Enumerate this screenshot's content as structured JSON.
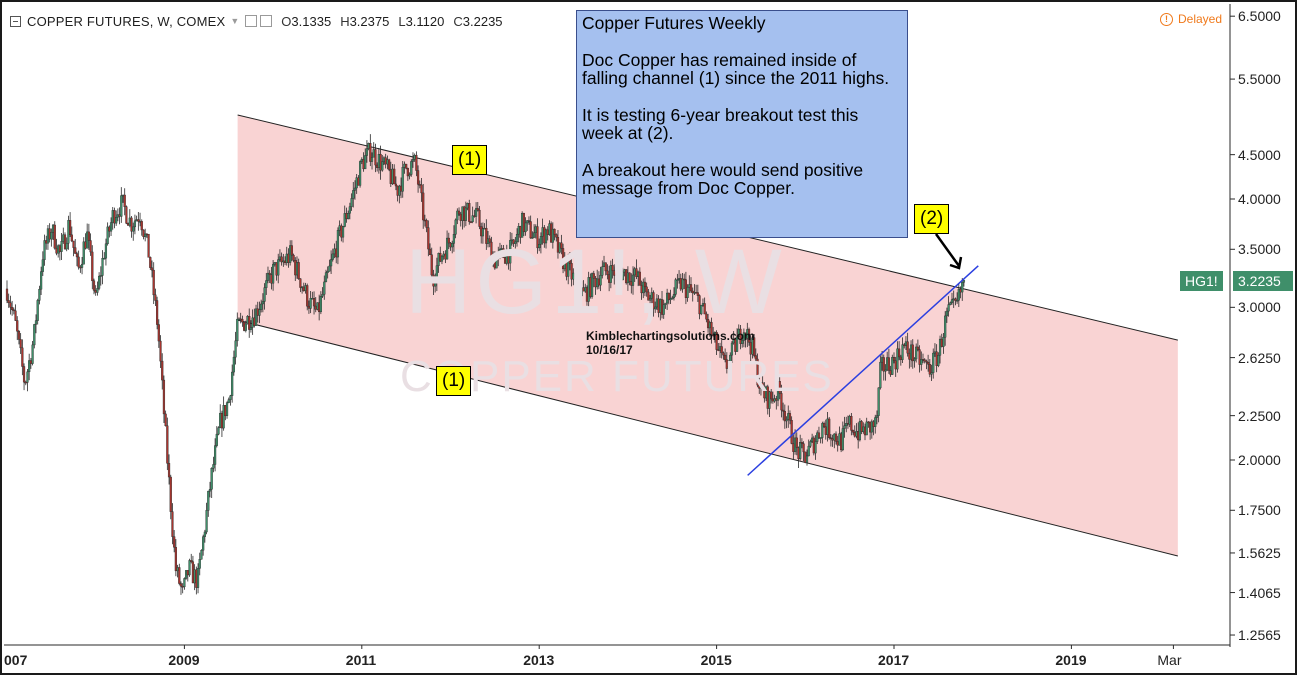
{
  "header": {
    "symbol": "COPPER FUTURES, W, COMEX",
    "open_label": "O",
    "open": "3.1335",
    "high_label": "H",
    "high": "3.2375",
    "low_label": "L",
    "low": "3.1120",
    "close_label": "C",
    "close": "3.2235"
  },
  "status": {
    "delayed": "Delayed"
  },
  "note": {
    "title": "Copper Futures Weekly",
    "para1": "Doc Copper has remained inside of falling channel (1) since the 2011 highs.",
    "para2": "It is testing 6-year breakout test this week at (2).",
    "para3": "A breakout here would send positive message from Doc Copper."
  },
  "labels": {
    "channel_top": "(1)",
    "channel_bottom": "(1)",
    "test_point": "(2)"
  },
  "watermark": {
    "symbol": "HG1!, W",
    "name": "COPPER FUTURES"
  },
  "credit": {
    "site": "Kimblechartingsolutions.com",
    "date": "10/16/17"
  },
  "price_scale": {
    "ticker_badge": "HG1!",
    "last_price": "3.2235"
  },
  "colors": {
    "up_candle": "#3f8f6a",
    "down_candle": "#a8352f",
    "channel_fill": "#f9d3d3",
    "trendline": "#2b3fe0",
    "note_bg": "#a5c0ef"
  },
  "chart_data": {
    "type": "candlestick",
    "title": "COPPER FUTURES, W, COMEX",
    "y_scale": "log",
    "ylim": [
      1.2565,
      6.5
    ],
    "y_ticks": [
      "6.5000",
      "5.5000",
      "4.5000",
      "4.0000",
      "3.5000",
      "3.0000",
      "2.6250",
      "2.2500",
      "2.0000",
      "1.7500",
      "1.5625",
      "1.4065",
      "1.2565"
    ],
    "x_ticks": [
      "007",
      "2009",
      "2011",
      "2013",
      "2015",
      "2017",
      "2019",
      "Mar"
    ],
    "anchors": [
      {
        "x": 2007.0,
        "y": 3.15
      },
      {
        "x": 2007.1,
        "y": 2.85
      },
      {
        "x": 2007.2,
        "y": 2.45
      },
      {
        "x": 2007.3,
        "y": 2.75
      },
      {
        "x": 2007.4,
        "y": 3.45
      },
      {
        "x": 2007.5,
        "y": 3.7
      },
      {
        "x": 2007.6,
        "y": 3.45
      },
      {
        "x": 2007.7,
        "y": 3.75
      },
      {
        "x": 2007.8,
        "y": 3.3
      },
      {
        "x": 2007.9,
        "y": 3.65
      },
      {
        "x": 2008.0,
        "y": 3.05
      },
      {
        "x": 2008.1,
        "y": 3.5
      },
      {
        "x": 2008.2,
        "y": 3.85
      },
      {
        "x": 2008.3,
        "y": 3.95
      },
      {
        "x": 2008.4,
        "y": 3.75
      },
      {
        "x": 2008.5,
        "y": 3.85
      },
      {
        "x": 2008.6,
        "y": 3.45
      },
      {
        "x": 2008.7,
        "y": 2.85
      },
      {
        "x": 2008.8,
        "y": 2.05
      },
      {
        "x": 2008.9,
        "y": 1.5
      },
      {
        "x": 2008.98,
        "y": 1.4
      },
      {
        "x": 2009.05,
        "y": 1.5
      },
      {
        "x": 2009.15,
        "y": 1.45
      },
      {
        "x": 2009.3,
        "y": 1.9
      },
      {
        "x": 2009.4,
        "y": 2.2
      },
      {
        "x": 2009.5,
        "y": 2.35
      },
      {
        "x": 2009.6,
        "y": 2.85
      },
      {
        "x": 2009.8,
        "y": 2.95
      },
      {
        "x": 2010.0,
        "y": 3.3
      },
      {
        "x": 2010.2,
        "y": 3.45
      },
      {
        "x": 2010.4,
        "y": 3.05
      },
      {
        "x": 2010.5,
        "y": 2.95
      },
      {
        "x": 2010.7,
        "y": 3.5
      },
      {
        "x": 2010.9,
        "y": 4.05
      },
      {
        "x": 2011.0,
        "y": 4.4
      },
      {
        "x": 2011.1,
        "y": 4.55
      },
      {
        "x": 2011.3,
        "y": 4.3
      },
      {
        "x": 2011.4,
        "y": 4.1
      },
      {
        "x": 2011.5,
        "y": 4.35
      },
      {
        "x": 2011.6,
        "y": 4.4
      },
      {
        "x": 2011.7,
        "y": 3.8
      },
      {
        "x": 2011.8,
        "y": 3.25
      },
      {
        "x": 2011.9,
        "y": 3.45
      },
      {
        "x": 2012.0,
        "y": 3.6
      },
      {
        "x": 2012.1,
        "y": 3.9
      },
      {
        "x": 2012.3,
        "y": 3.8
      },
      {
        "x": 2012.5,
        "y": 3.4
      },
      {
        "x": 2012.7,
        "y": 3.5
      },
      {
        "x": 2012.8,
        "y": 3.75
      },
      {
        "x": 2013.0,
        "y": 3.6
      },
      {
        "x": 2013.1,
        "y": 3.7
      },
      {
        "x": 2013.3,
        "y": 3.35
      },
      {
        "x": 2013.5,
        "y": 3.1
      },
      {
        "x": 2013.7,
        "y": 3.3
      },
      {
        "x": 2013.9,
        "y": 3.3
      },
      {
        "x": 2014.1,
        "y": 3.25
      },
      {
        "x": 2014.2,
        "y": 3.1
      },
      {
        "x": 2014.4,
        "y": 3.0
      },
      {
        "x": 2014.6,
        "y": 3.2
      },
      {
        "x": 2014.8,
        "y": 3.05
      },
      {
        "x": 2015.0,
        "y": 2.7
      },
      {
        "x": 2015.1,
        "y": 2.55
      },
      {
        "x": 2015.3,
        "y": 2.85
      },
      {
        "x": 2015.4,
        "y": 2.7
      },
      {
        "x": 2015.5,
        "y": 2.4
      },
      {
        "x": 2015.6,
        "y": 2.35
      },
      {
        "x": 2015.7,
        "y": 2.4
      },
      {
        "x": 2015.9,
        "y": 2.05
      },
      {
        "x": 2016.0,
        "y": 2.02
      },
      {
        "x": 2016.1,
        "y": 2.1
      },
      {
        "x": 2016.2,
        "y": 2.2
      },
      {
        "x": 2016.4,
        "y": 2.1
      },
      {
        "x": 2016.5,
        "y": 2.2
      },
      {
        "x": 2016.6,
        "y": 2.15
      },
      {
        "x": 2016.8,
        "y": 2.2
      },
      {
        "x": 2016.85,
        "y": 2.55
      },
      {
        "x": 2017.0,
        "y": 2.6
      },
      {
        "x": 2017.1,
        "y": 2.7
      },
      {
        "x": 2017.3,
        "y": 2.6
      },
      {
        "x": 2017.4,
        "y": 2.55
      },
      {
        "x": 2017.5,
        "y": 2.65
      },
      {
        "x": 2017.6,
        "y": 2.95
      },
      {
        "x": 2017.7,
        "y": 3.0
      },
      {
        "x": 2017.79,
        "y": 3.2235
      }
    ],
    "channel": {
      "upper": {
        "x1": 2009.6,
        "y1": 5.0,
        "x2": 2020.2,
        "y2": 2.75
      },
      "lower": {
        "x1": 2009.6,
        "y1": 2.9,
        "x2": 2020.2,
        "y2": 1.55
      }
    },
    "trendline": {
      "x1": 2015.35,
      "y1": 1.92,
      "x2": 2017.95,
      "y2": 3.35
    }
  }
}
